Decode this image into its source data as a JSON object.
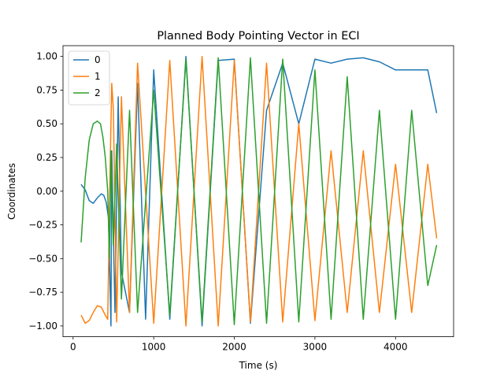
{
  "chart_data": {
    "type": "line",
    "title": "Planned Body Pointing Vector in ECI",
    "xlabel": "Time (s)",
    "ylabel": "Coordinates",
    "xlim": [
      -125,
      4720
    ],
    "ylim": [
      -1.08,
      1.08
    ],
    "xticks": [
      0,
      1000,
      2000,
      3000,
      4000
    ],
    "xtick_labels": [
      "0",
      "1000",
      "2000",
      "3000",
      "4000"
    ],
    "yticks": [
      -1.0,
      -0.75,
      -0.5,
      -0.25,
      0.0,
      0.25,
      0.5,
      0.75,
      1.0
    ],
    "ytick_labels": [
      "−1.00",
      "−0.75",
      "−0.50",
      "−0.25",
      "0.00",
      "0.25",
      "0.50",
      "0.75",
      "1.00"
    ],
    "grid": false,
    "legend_position": "upper-left",
    "series": [
      {
        "name": "0",
        "color": "#1f77b4",
        "x": [
          100,
          150,
          200,
          250,
          300,
          350,
          380,
          410,
          440,
          470,
          480,
          520,
          560,
          600,
          700,
          800,
          900,
          1000,
          1200,
          1400,
          1600,
          1800,
          2000,
          2200,
          2400,
          2600,
          2800,
          3000,
          3200,
          3400,
          3600,
          3800,
          4000,
          4200,
          4400,
          4510
        ],
        "y": [
          0.05,
          0.01,
          -0.07,
          -0.09,
          -0.05,
          -0.02,
          -0.03,
          -0.08,
          -0.2,
          -1.0,
          0.3,
          -0.9,
          0.7,
          -0.6,
          -0.9,
          0.8,
          -0.95,
          0.9,
          -0.95,
          1.0,
          -1.0,
          0.97,
          0.98,
          -0.98,
          0.6,
          0.95,
          0.5,
          0.98,
          0.95,
          0.98,
          0.99,
          0.96,
          0.9,
          0.9,
          0.9,
          0.58
        ]
      },
      {
        "name": "1",
        "color": "#ff7f0e",
        "x": [
          100,
          150,
          200,
          250,
          300,
          350,
          400,
          430,
          460,
          480,
          500,
          540,
          600,
          700,
          800,
          1000,
          1200,
          1400,
          1600,
          1800,
          2000,
          2200,
          2400,
          2600,
          2800,
          3000,
          3200,
          3400,
          3600,
          3800,
          4000,
          4200,
          4400,
          4510
        ],
        "y": [
          -0.92,
          -0.98,
          -0.96,
          -0.9,
          -0.85,
          -0.86,
          -0.92,
          -0.95,
          0.2,
          0.8,
          0.6,
          -0.97,
          0.7,
          -0.9,
          0.95,
          -0.98,
          0.97,
          -1.0,
          1.0,
          -1.0,
          0.97,
          -0.97,
          0.95,
          -0.97,
          0.5,
          -0.96,
          0.3,
          -0.9,
          0.3,
          -0.9,
          0.2,
          -0.9,
          0.2,
          -0.35
        ]
      },
      {
        "name": "2",
        "color": "#2ca02c",
        "x": [
          100,
          150,
          200,
          250,
          300,
          340,
          370,
          400,
          430,
          450,
          470,
          500,
          540,
          600,
          700,
          800,
          1000,
          1200,
          1400,
          1600,
          1800,
          2000,
          2200,
          2400,
          2600,
          2800,
          3000,
          3200,
          3400,
          3600,
          3800,
          4000,
          4200,
          4400,
          4510
        ],
        "y": [
          -0.38,
          0.1,
          0.38,
          0.5,
          0.52,
          0.5,
          0.4,
          0.25,
          0.0,
          -0.5,
          0.3,
          -0.4,
          0.35,
          -0.8,
          0.6,
          -0.9,
          0.75,
          -0.92,
          0.98,
          -0.97,
          0.99,
          -0.99,
          0.99,
          -0.98,
          0.98,
          -0.97,
          0.9,
          -0.95,
          0.85,
          -0.95,
          0.6,
          -0.95,
          0.6,
          -0.7,
          -0.4
        ]
      }
    ]
  }
}
